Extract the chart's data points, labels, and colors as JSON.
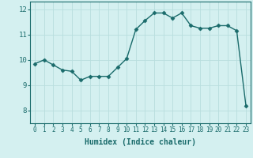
{
  "x": [
    0,
    1,
    2,
    3,
    4,
    5,
    6,
    7,
    8,
    9,
    10,
    11,
    12,
    13,
    14,
    15,
    16,
    17,
    18,
    19,
    20,
    21,
    22,
    23
  ],
  "y": [
    9.85,
    10.0,
    9.8,
    9.6,
    9.55,
    9.2,
    9.35,
    9.35,
    9.35,
    9.7,
    10.05,
    11.2,
    11.55,
    11.85,
    11.85,
    11.65,
    11.85,
    11.35,
    11.25,
    11.25,
    11.35,
    11.35,
    11.15,
    8.2
  ],
  "line_color": "#1a6b6b",
  "marker": "D",
  "markersize": 2.5,
  "linewidth": 1.0,
  "xlabel": "Humidex (Indice chaleur)",
  "xlabel_fontsize": 7,
  "tick_color": "#1a6b6b",
  "background_color": "#d4f0f0",
  "grid_color": "#b8dede",
  "ylim": [
    7.5,
    12.3
  ],
  "xlim": [
    -0.5,
    23.5
  ],
  "yticks": [
    8,
    9,
    10,
    11,
    12
  ],
  "xticks": [
    0,
    1,
    2,
    3,
    4,
    5,
    6,
    7,
    8,
    9,
    10,
    11,
    12,
    13,
    14,
    15,
    16,
    17,
    18,
    19,
    20,
    21,
    22,
    23
  ],
  "tick_fontsize": 5.5,
  "ytick_fontsize": 6.5
}
